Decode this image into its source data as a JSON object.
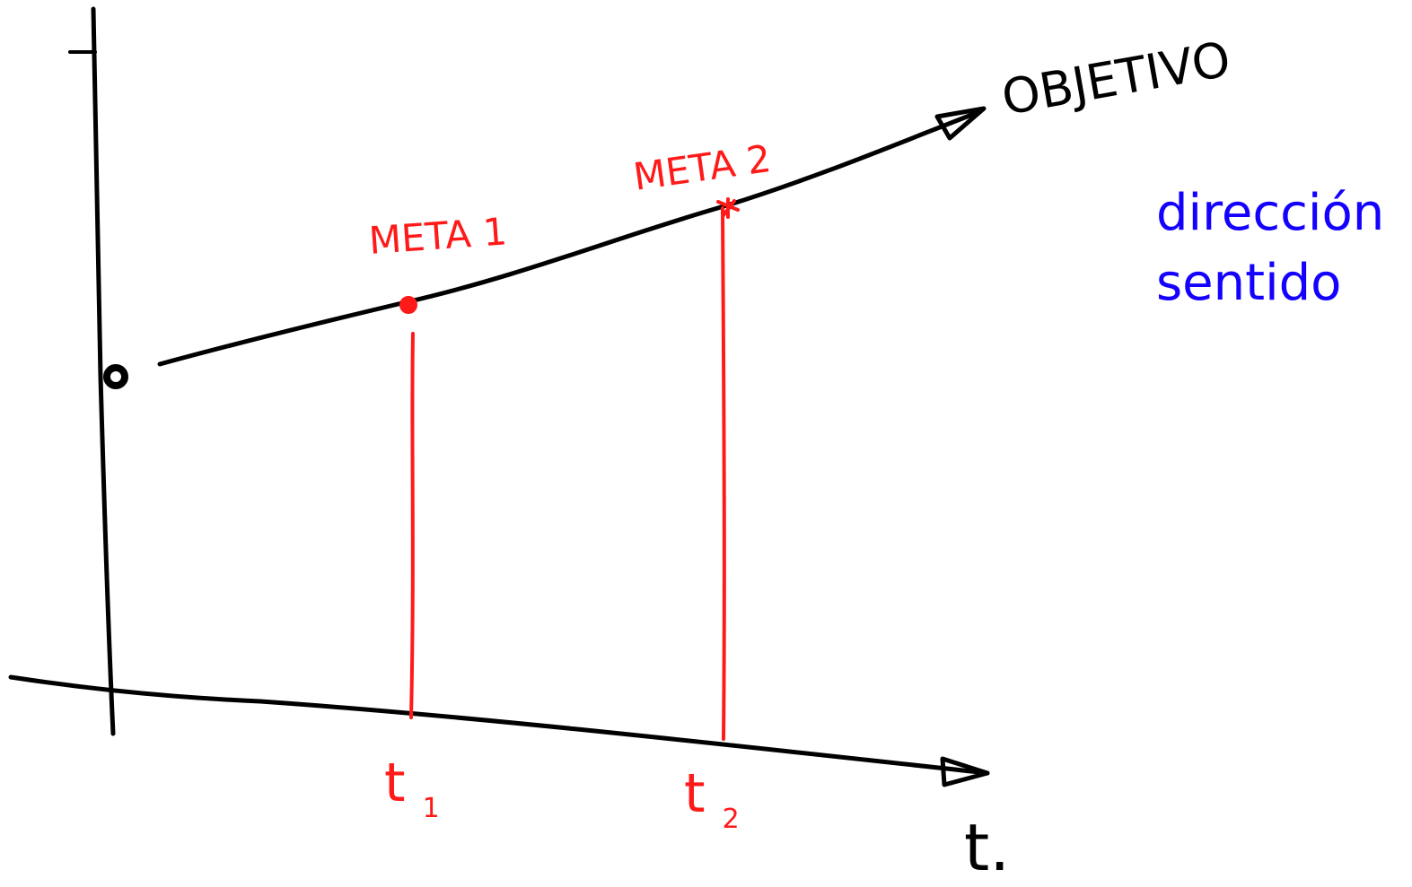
{
  "colors": {
    "ink": "#000000",
    "meta": "#ff1a1a",
    "note": "#1400ff",
    "background": "#ffffff"
  },
  "labels": {
    "objective": "OBJETIVO",
    "meta_1": "META 1",
    "meta_2": "META 2",
    "t1_base": "t",
    "t1_sub": "1",
    "t2_base": "t",
    "t2_sub": "2",
    "x_axis": "t.",
    "note_line_1": "dirección",
    "note_line_2": "sentido"
  }
}
